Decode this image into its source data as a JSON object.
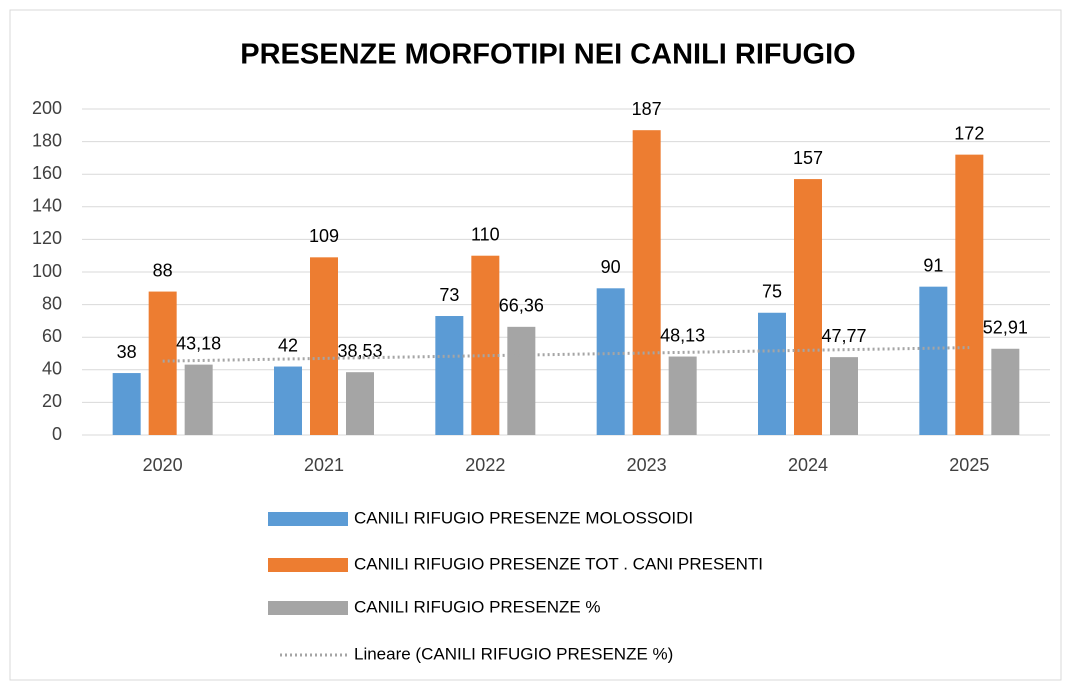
{
  "chart_data": {
    "type": "bar",
    "title": "PRESENZE MORFOTIPI NEI CANILI RIFUGIO",
    "categories": [
      "2020",
      "2021",
      "2022",
      "2023",
      "2024",
      "2025"
    ],
    "series": [
      {
        "name": "CANILI RIFUGIO PRESENZE MOLOSSOIDI",
        "color": "#5b9bd5",
        "values": [
          38,
          42,
          73,
          90,
          75,
          91
        ]
      },
      {
        "name": "CANILI RIFUGIO PRESENZE TOT . CANI PRESENTI",
        "color": "#ed7d31",
        "values": [
          88,
          109,
          110,
          187,
          157,
          172
        ]
      },
      {
        "name": "CANILI RIFUGIO PRESENZE %",
        "color": "#a5a5a5",
        "values": [
          43.18,
          38.53,
          66.36,
          48.13,
          47.77,
          52.91
        ],
        "value_labels": [
          "43,18",
          "38,53",
          "66,36",
          "48,13",
          "47,77",
          "52,91"
        ]
      },
      {
        "name": "Lineare (CANILI RIFUGIO PRESENZE %)",
        "type": "trendline",
        "color": "#a5a5a5",
        "values": [
          45.33,
          46.99,
          48.65,
          50.31,
          51.97,
          53.63
        ]
      }
    ],
    "ylim": [
      0,
      200
    ],
    "yticks": [
      0,
      20,
      40,
      60,
      80,
      100,
      120,
      140,
      160,
      180,
      200
    ],
    "grid": true,
    "legend": "bottom"
  }
}
